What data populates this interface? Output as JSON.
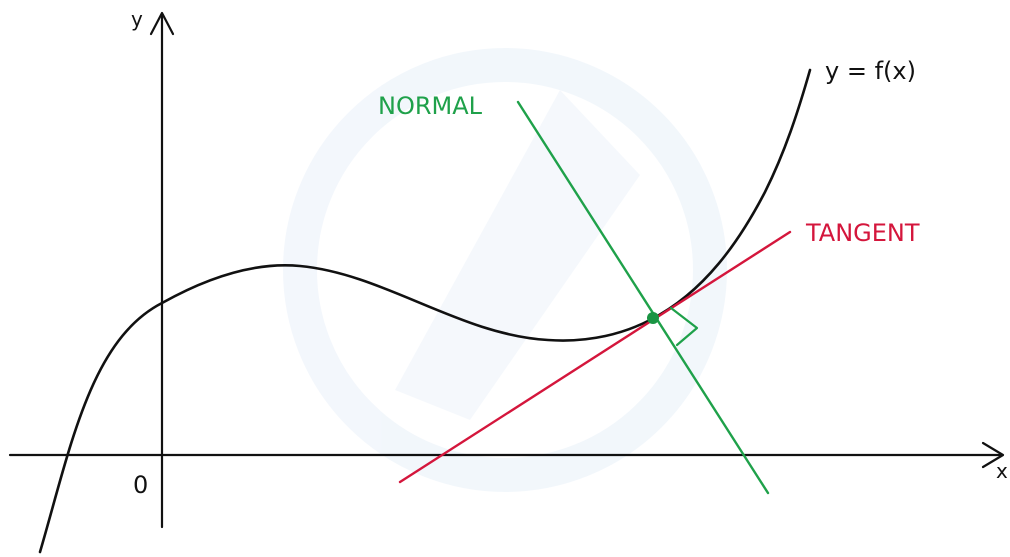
{
  "labels": {
    "y_axis": "y",
    "x_axis": "x",
    "origin": "0",
    "curve": "y = f(x)",
    "normal": "NORMAL",
    "tangent": "TANGENT"
  },
  "colors": {
    "curve": "#111111",
    "axes": "#111111",
    "normal": "#1fa14a",
    "tangent": "#d4163c",
    "point": "#1a9443",
    "watermark": "#e4eef8",
    "background": "#ffffff"
  }
}
